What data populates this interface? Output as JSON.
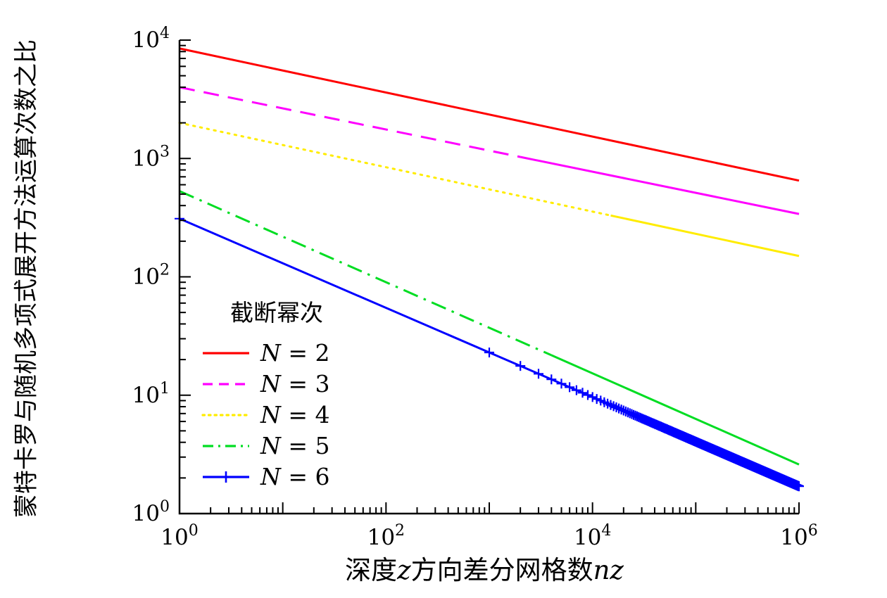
{
  "page": {
    "background": "#ffffff",
    "axis_color": "#000000"
  },
  "chart_data": {
    "type": "line",
    "x_scale": "log",
    "y_scale": "log",
    "x_range": [
      1,
      1000000
    ],
    "y_range": [
      1,
      10000
    ],
    "grid": false,
    "xlabel_text": "深度z方向差分网格数nz",
    "xlabel_parts": [
      {
        "text": "深度",
        "italic": false
      },
      {
        "text": "z",
        "italic": true
      },
      {
        "text": "方向差分网格数",
        "italic": false
      },
      {
        "text": "nz",
        "italic": true
      }
    ],
    "ylabel_text": "蒙特卡罗与随机多项式展开方法运算次数之比",
    "x_ticks": {
      "decade_exponents": [
        0,
        1,
        2,
        3,
        4,
        5,
        6
      ],
      "labeled_exponents": [
        0,
        2,
        4,
        6
      ],
      "label_base": "10"
    },
    "y_ticks": {
      "decade_exponents": [
        0,
        1,
        2,
        3,
        4
      ],
      "labeled_exponents": [
        0,
        1,
        2,
        3,
        4
      ],
      "label_base": "10"
    },
    "axis_color": "#000000",
    "legend": {
      "title": "截断幂次",
      "position": "inside-lower-left"
    },
    "series": [
      {
        "name": "N = 2",
        "label_var": "N",
        "label_value": "2",
        "color": "#ff0000",
        "style": "solid",
        "endpoints": [
          [
            1,
            8500
          ],
          [
            1000000,
            650
          ]
        ]
      },
      {
        "name": "N = 3",
        "label_var": "N",
        "label_value": "3",
        "color": "#ff00ff",
        "style": "dashed",
        "pattern_until_x": 2000,
        "endpoints": [
          [
            1,
            4000
          ],
          [
            1000000,
            340
          ]
        ]
      },
      {
        "name": "N = 4",
        "label_var": "N",
        "label_value": "4",
        "color": "#ffec00",
        "style": "dotted",
        "pattern_until_x": 15000,
        "endpoints": [
          [
            1,
            2000
          ],
          [
            1000000,
            150
          ]
        ]
      },
      {
        "name": "N = 5",
        "label_var": "N",
        "label_value": "5",
        "color": "#00dd22",
        "style": "dashdot",
        "pattern_until_x": 4000,
        "endpoints": [
          [
            1,
            530
          ],
          [
            1000000,
            2.6
          ]
        ]
      },
      {
        "name": "N = 6",
        "label_var": "N",
        "label_value": "6",
        "color": "#0000ff",
        "style": "solid",
        "marker": "plus",
        "marker_x": {
          "start": 1000,
          "step": 1000,
          "end": 1000000,
          "extra": [
            1
          ]
        },
        "endpoints": [
          [
            1,
            310
          ],
          [
            1000000,
            1.7
          ]
        ]
      }
    ]
  }
}
